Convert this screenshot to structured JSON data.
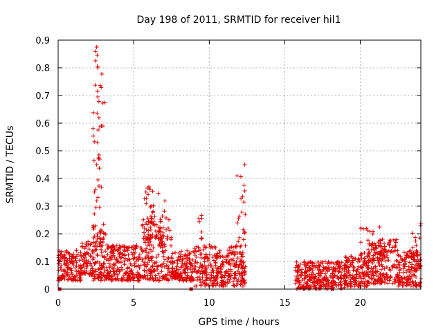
{
  "chart_data": {
    "type": "scatter",
    "title": "Day 198 of 2011, SRMTID for receiver hil1",
    "xlabel": "GPS time / hours",
    "ylabel": "SRMTID / TECUs",
    "xlim": [
      0,
      24
    ],
    "ylim": [
      0,
      0.9
    ],
    "xticks": [
      0,
      5,
      10,
      15,
      20
    ],
    "xtick_labels": [
      "0",
      "5",
      "10",
      "15",
      "20"
    ],
    "yticks": [
      0,
      0.1,
      0.2,
      0.3,
      0.4,
      0.5,
      0.6,
      0.7,
      0.8,
      0.9
    ],
    "ytick_labels": [
      "0",
      "0.1",
      "0.2",
      "0.3",
      "0.4",
      "0.5",
      "0.6",
      "0.7",
      "0.8",
      "0.9"
    ],
    "grid": true,
    "marker": "+",
    "color": "#e00000",
    "data_gap_hours": [
      12.4,
      15.7
    ],
    "envelope": [
      {
        "x": [
          0,
          1.5
        ],
        "y": [
          0.03,
          0.14
        ]
      },
      {
        "x": [
          1.5,
          2.3
        ],
        "y": [
          0.05,
          0.18
        ]
      },
      {
        "x": [
          2.3,
          3.3
        ],
        "y": [
          0.03,
          0.2
        ]
      },
      {
        "x": [
          3.3,
          5.5
        ],
        "y": [
          0.03,
          0.16
        ]
      },
      {
        "x": [
          5.5,
          7.5
        ],
        "y": [
          0.03,
          0.26
        ]
      },
      {
        "x": [
          7.5,
          9.0
        ],
        "y": [
          0.03,
          0.14
        ]
      },
      {
        "x": [
          9.0,
          12.4
        ],
        "y": [
          0.01,
          0.16
        ]
      },
      {
        "x": [
          15.7,
          19.0
        ],
        "y": [
          0.0,
          0.1
        ]
      },
      {
        "x": [
          19.0,
          20.5
        ],
        "y": [
          0.01,
          0.12
        ]
      },
      {
        "x": [
          20.5,
          22.5
        ],
        "y": [
          0.02,
          0.18
        ]
      },
      {
        "x": [
          22.5,
          24.0
        ],
        "y": [
          0.01,
          0.14
        ]
      }
    ],
    "peaks": [
      {
        "x": [
          2.3,
          3.1
        ],
        "y": [
          0.2,
          0.88
        ],
        "count": 45
      },
      {
        "x": [
          5.7,
          6.4
        ],
        "y": [
          0.18,
          0.37
        ],
        "count": 30
      },
      {
        "x": [
          6.6,
          7.1
        ],
        "y": [
          0.15,
          0.35
        ],
        "count": 20
      },
      {
        "x": [
          9.3,
          9.6
        ],
        "y": [
          0.18,
          0.27
        ],
        "count": 8
      },
      {
        "x": [
          11.8,
          12.4
        ],
        "y": [
          0.15,
          0.45
        ],
        "count": 18
      },
      {
        "x": [
          20.0,
          21.5
        ],
        "y": [
          0.1,
          0.24
        ],
        "count": 35
      },
      {
        "x": [
          23.3,
          24.0
        ],
        "y": [
          0.12,
          0.26
        ],
        "count": 14
      }
    ],
    "spikes": [
      [
        2.55,
        0.875
      ],
      [
        2.58,
        0.845
      ],
      [
        2.6,
        0.805
      ],
      [
        2.62,
        0.8
      ],
      [
        2.6,
        0.715
      ],
      [
        2.63,
        0.695
      ],
      [
        2.58,
        0.635
      ],
      [
        2.65,
        0.575
      ],
      [
        2.6,
        0.53
      ],
      [
        2.7,
        0.485
      ],
      [
        2.75,
        0.47
      ],
      [
        2.55,
        0.45
      ],
      [
        12.35,
        0.45
      ],
      [
        12.3,
        0.375
      ],
      [
        12.35,
        0.355
      ],
      [
        6.0,
        0.37
      ],
      [
        5.9,
        0.365
      ]
    ],
    "zero_markers": [
      [
        0.1,
        0.0
      ],
      [
        8.8,
        0.0
      ]
    ]
  }
}
